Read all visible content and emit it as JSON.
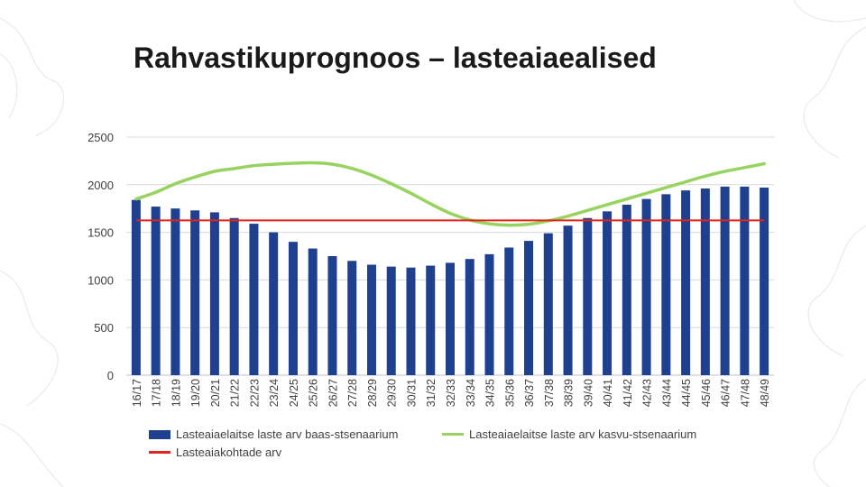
{
  "slide": {
    "title": "Rahvastikuprognoos – lasteaiaealised"
  },
  "colors": {
    "bars": "#1f3f8f",
    "growth_line": "#96d35f",
    "capacity_line": "#e3241b",
    "grid": "#d9d9d9"
  },
  "chart_data": {
    "type": "bar",
    "title": "",
    "xlabel": "",
    "ylabel": "",
    "ylim": [
      0,
      2500
    ],
    "yticks": [
      0,
      500,
      1000,
      1500,
      2000,
      2500
    ],
    "grid": true,
    "legend_position": "bottom",
    "categories": [
      "16/17",
      "17/18",
      "18/19",
      "19/20",
      "20/21",
      "21/22",
      "22/23",
      "23/24",
      "24/25",
      "25/26",
      "26/27",
      "27/28",
      "28/29",
      "29/30",
      "30/31",
      "31/32",
      "32/33",
      "33/34",
      "34/35",
      "35/36",
      "36/37",
      "37/38",
      "38/39",
      "39/40",
      "40/41",
      "41/42",
      "42/43",
      "43/44",
      "44/45",
      "45/46",
      "46/47",
      "47/48",
      "48/49"
    ],
    "series": [
      {
        "name": "Lasteaiaelaitse laste arv baas-stsenaarium",
        "type": "bar",
        "values": [
          1840,
          1770,
          1750,
          1730,
          1710,
          1650,
          1590,
          1500,
          1400,
          1330,
          1250,
          1200,
          1160,
          1140,
          1130,
          1150,
          1180,
          1220,
          1270,
          1340,
          1410,
          1490,
          1570,
          1650,
          1720,
          1790,
          1850,
          1900,
          1940,
          1960,
          1980,
          1980,
          1970
        ]
      },
      {
        "name": "Lasteaiaelaitse laste arv kasvu-stsenaarium",
        "type": "line",
        "values": [
          1850,
          1920,
          2010,
          2080,
          2140,
          2170,
          2200,
          2215,
          2225,
          2230,
          2215,
          2170,
          2100,
          2010,
          1910,
          1800,
          1700,
          1630,
          1590,
          1575,
          1585,
          1620,
          1670,
          1730,
          1790,
          1850,
          1910,
          1970,
          2030,
          2090,
          2140,
          2180,
          2220
        ]
      },
      {
        "name": "Lasteaiakohtade arv",
        "type": "line",
        "values": [
          1625,
          1625,
          1625,
          1625,
          1625,
          1625,
          1625,
          1625,
          1625,
          1625,
          1625,
          1625,
          1625,
          1625,
          1625,
          1625,
          1625,
          1625,
          1625,
          1625,
          1625,
          1625,
          1625,
          1625,
          1625,
          1625,
          1625,
          1625,
          1625,
          1625,
          1625,
          1625,
          1625
        ]
      }
    ]
  }
}
